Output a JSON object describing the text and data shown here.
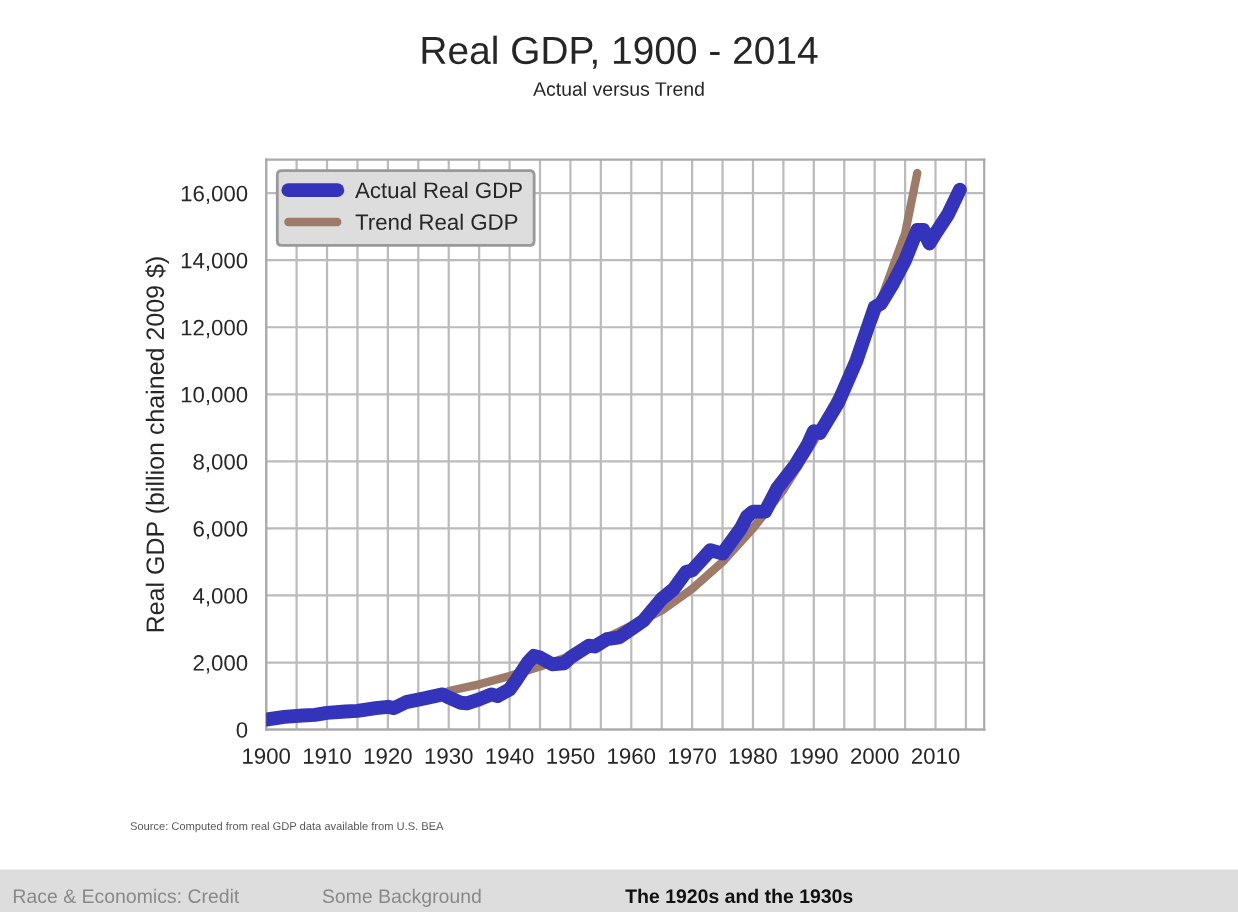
{
  "chart_data": {
    "type": "line",
    "title": "Real GDP, 1900 - 2014",
    "subtitle": "Actual versus Trend",
    "ylabel": "Real GDP (billion chained 2009 $)",
    "xlim": [
      1900,
      2018
    ],
    "ylim": [
      0,
      17000
    ],
    "xticks": [
      1900,
      {
        "value": 1905,
        "label": null
      },
      1910,
      {
        "value": 1915,
        "label": null
      },
      1920,
      {
        "value": 1925,
        "label": null
      },
      1930,
      {
        "value": 1935,
        "label": null
      },
      1940,
      {
        "value": 1945,
        "label": null
      },
      1950,
      {
        "value": 1955,
        "label": null
      },
      1960,
      {
        "value": 1965,
        "label": null
      },
      1970,
      {
        "value": 1975,
        "label": null
      },
      1980,
      {
        "value": 1985,
        "label": null
      },
      1990,
      {
        "value": 1995,
        "label": null
      },
      2000,
      {
        "value": 2005,
        "label": null
      },
      2010,
      {
        "value": 2015,
        "label": null
      }
    ],
    "yticks": [
      0,
      {
        "value": 2000,
        "label": "2,000"
      },
      {
        "value": 4000,
        "label": "4,000"
      },
      {
        "value": 6000,
        "label": "6,000"
      },
      {
        "value": 8000,
        "label": "8,000"
      },
      {
        "value": 10000,
        "label": "10,000"
      },
      {
        "value": 12000,
        "label": "12,000"
      },
      {
        "value": 14000,
        "label": "14,000"
      },
      {
        "value": 16000,
        "label": "16,000"
      }
    ],
    "grid": true,
    "legend": "top left",
    "line_style": "solid",
    "marker": "none",
    "series": [
      {
        "name": "Actual Real GDP",
        "color": "#3333bb",
        "x": [
          1900,
          1903,
          1906,
          1908,
          1910,
          1913,
          1915,
          1918,
          1920,
          1921,
          1923,
          1926,
          1929,
          1930,
          1932,
          1933,
          1935,
          1937,
          1938,
          1940,
          1941,
          1943,
          1944,
          1945,
          1947,
          1949,
          1950,
          1953,
          1954,
          1956,
          1958,
          1960,
          1962,
          1965,
          1967,
          1969,
          1970,
          1973,
          1974,
          1975,
          1978,
          1979,
          1980,
          1982,
          1984,
          1987,
          1989,
          1990,
          1991,
          1994,
          1997,
          2000,
          2001,
          2003,
          2005,
          2007,
          2008,
          2009,
          2010,
          2012,
          2014
        ],
        "values": [
          300,
          380,
          420,
          440,
          500,
          540,
          560,
          640,
          680,
          640,
          820,
          930,
          1050,
          960,
          800,
          780,
          900,
          1050,
          1000,
          1200,
          1450,
          2000,
          2200,
          2150,
          1950,
          1980,
          2150,
          2500,
          2480,
          2700,
          2750,
          3000,
          3250,
          3900,
          4200,
          4700,
          4750,
          5350,
          5300,
          5250,
          6000,
          6350,
          6500,
          6500,
          7200,
          7900,
          8500,
          8900,
          8850,
          9750,
          11000,
          12600,
          12700,
          13300,
          14000,
          14900,
          14900,
          14500,
          14800,
          15350,
          16100
        ]
      },
      {
        "name": "Trend Real GDP",
        "color": "#9e7a68",
        "x": [
          1930,
          1935,
          1940,
          1945,
          1950,
          1965,
          1970,
          1975,
          1980,
          1985,
          1990,
          1995,
          2000,
          2005,
          2007
        ],
        "values": [
          1150,
          1350,
          1600,
          1880,
          2200,
          3550,
          4200,
          5000,
          6000,
          7150,
          8600,
          10300,
          12300,
          14800,
          16600
        ]
      }
    ],
    "annotations": [
      "Source: Computed from real GDP data available from U.S. BEA",
      "Race & Economics: Credit",
      "Some Background",
      "The 1920s and the 1930s"
    ]
  }
}
